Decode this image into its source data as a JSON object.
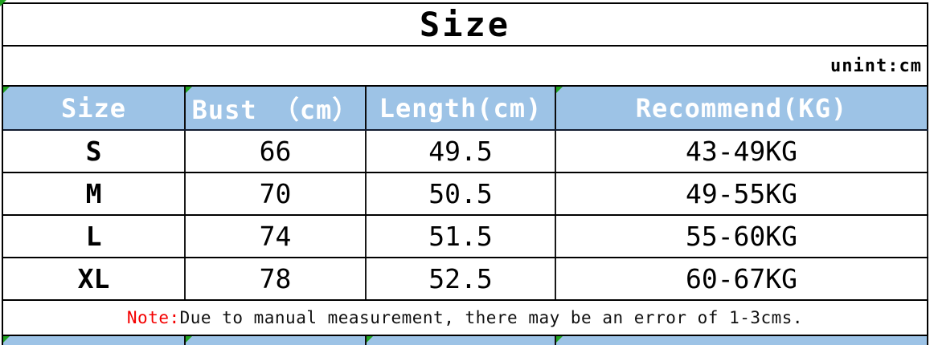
{
  "page": {
    "title": "Size",
    "unit_label": "unint:cm"
  },
  "chart_data": {
    "type": "table",
    "title": "Size",
    "unit_note": "unint:cm",
    "columns": [
      "Size",
      "Bust （cm）",
      "Length(cm)",
      "Recommend(KG)"
    ],
    "rows": [
      [
        "S",
        "66",
        "49.5",
        "43-49KG"
      ],
      [
        "M",
        "70",
        "50.5",
        "49-55KG"
      ],
      [
        "L",
        "74",
        "51.5",
        "55-60KG"
      ],
      [
        "XL",
        "78",
        "52.5",
        "60-67KG"
      ]
    ],
    "note_prefix": "Note:",
    "note_text": "Due to manual measurement, there may be an error of 1-3cms."
  },
  "colors": {
    "header_bg": "#9DC3E6",
    "header_text": "#FFFFFF",
    "note_red": "#F40000",
    "marker_green": "#1FA11F",
    "grid_border": "#000000"
  }
}
